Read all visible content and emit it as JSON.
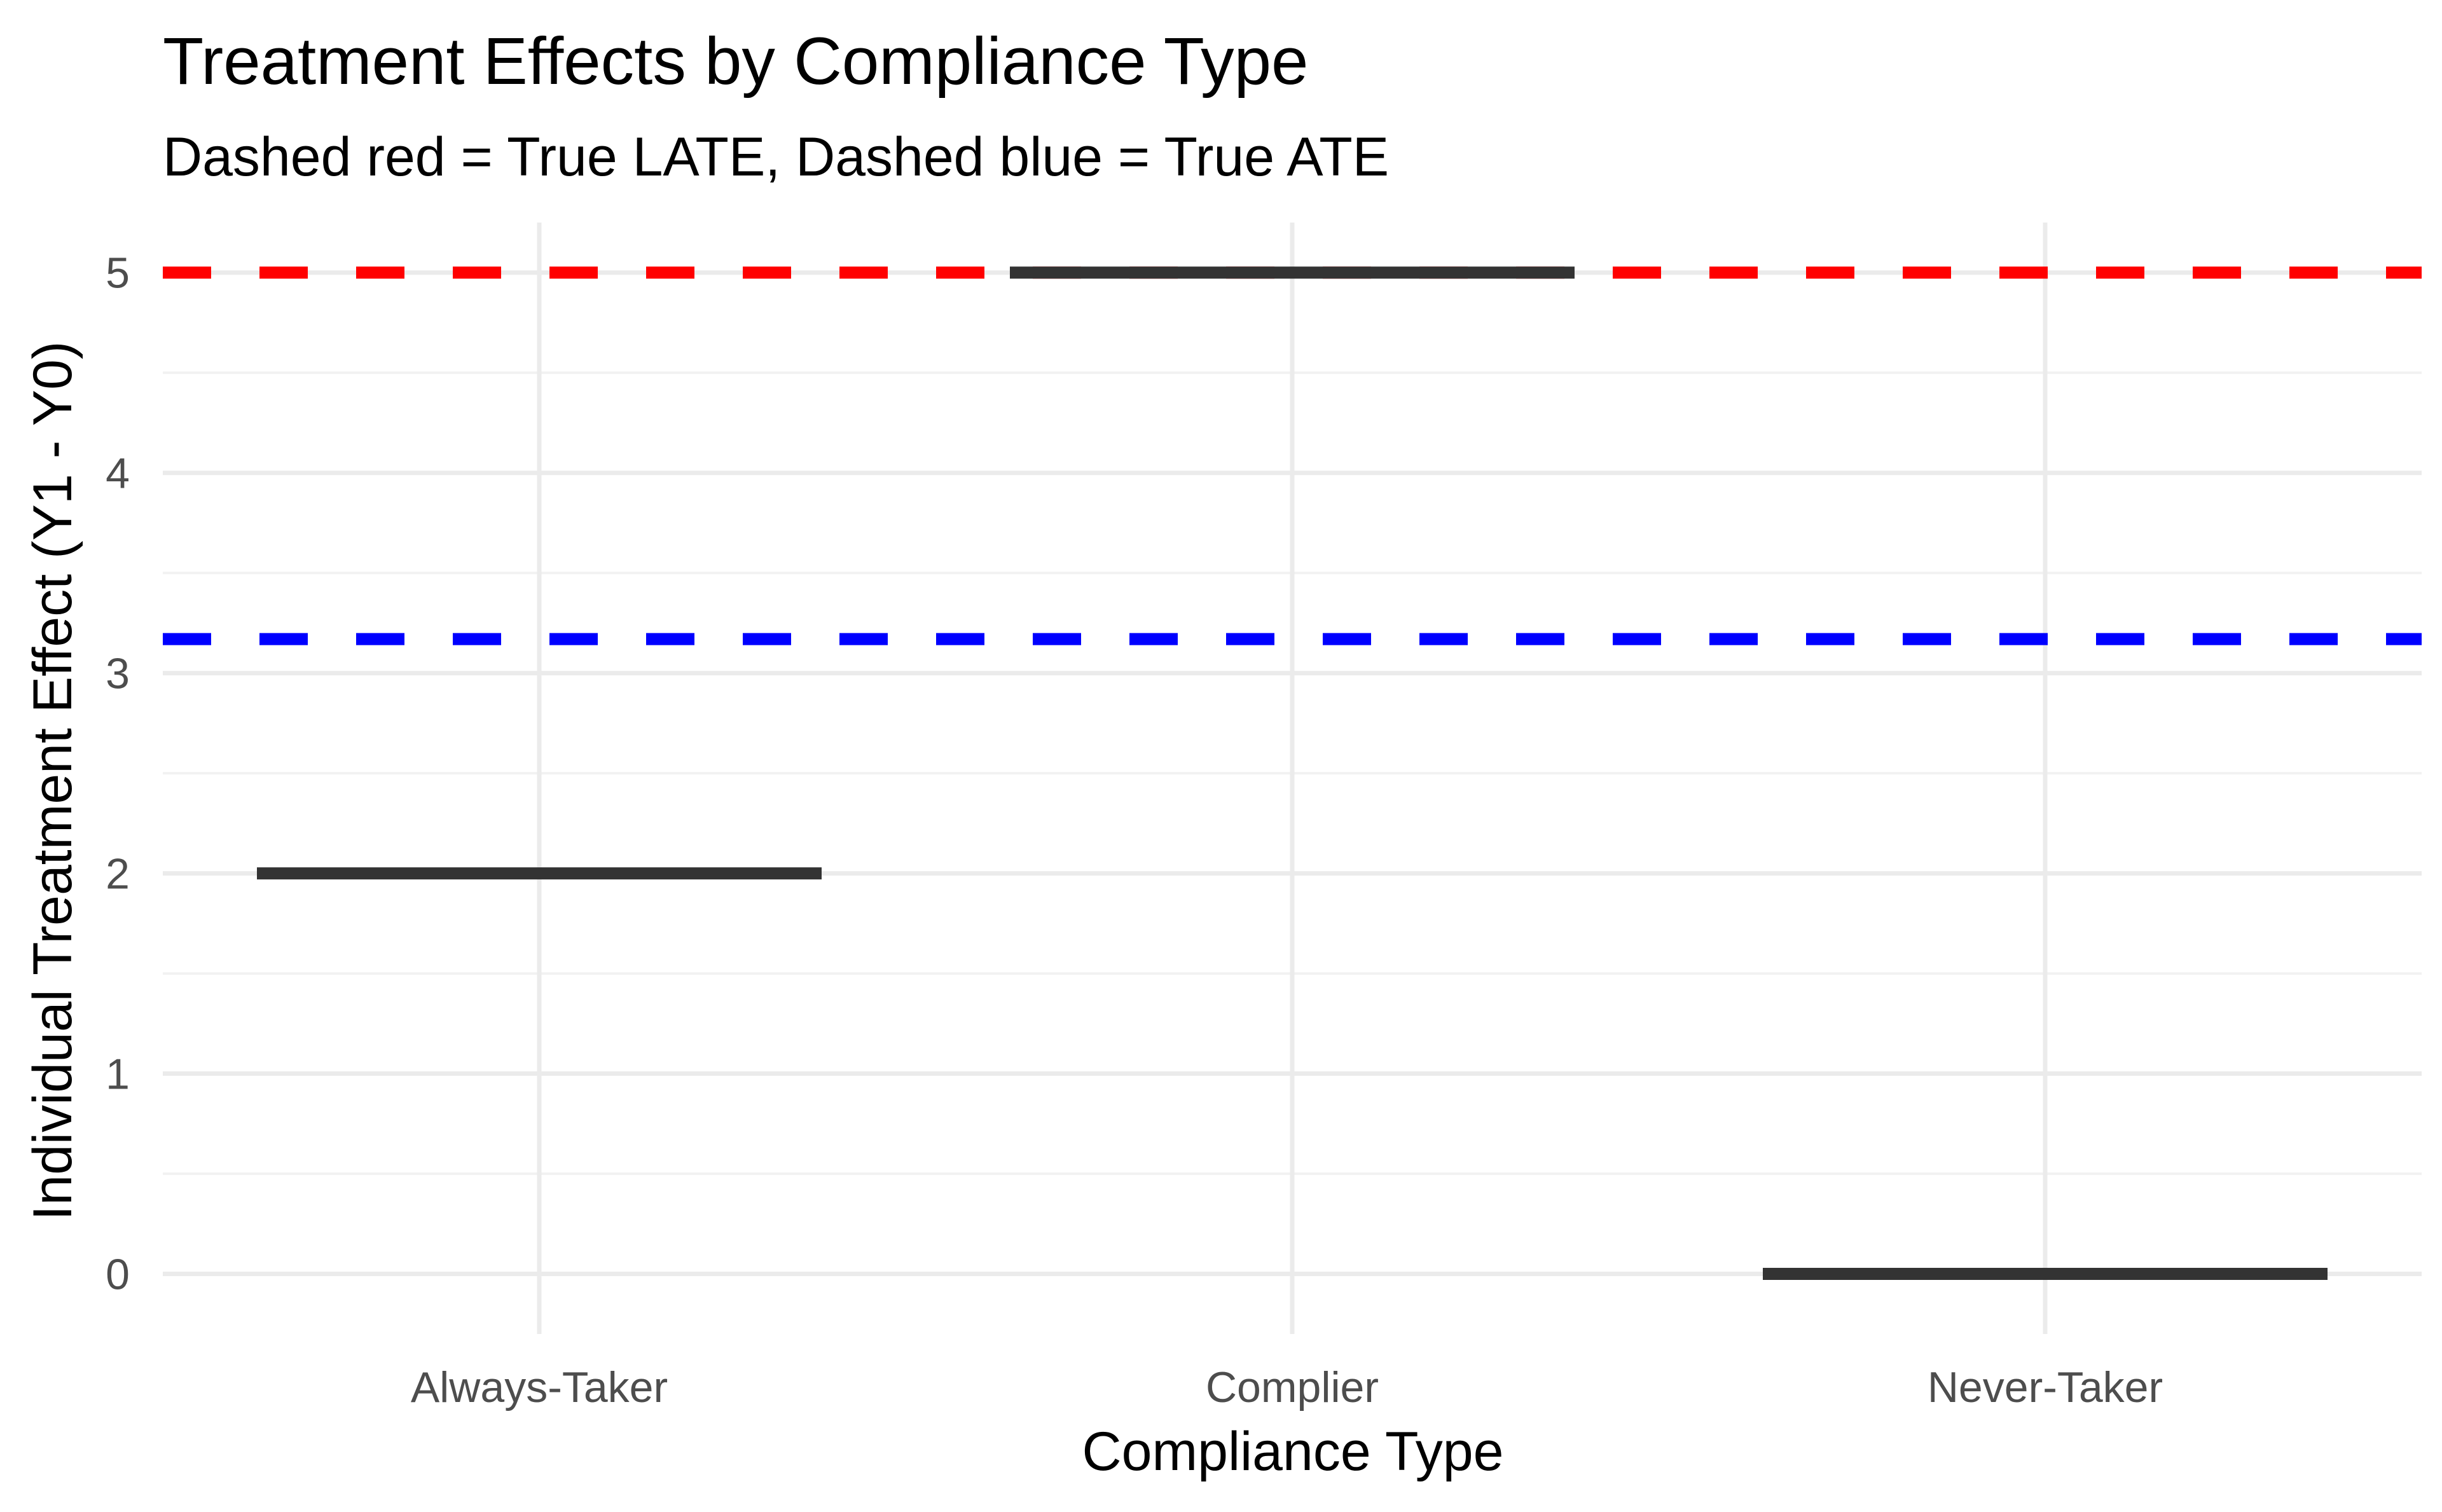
{
  "chart_data": {
    "type": "boxplot",
    "title": "Treatment Effects by Compliance Type",
    "subtitle": "Dashed red = True LATE, Dashed blue = True ATE",
    "xlabel": "Compliance Type",
    "ylabel": "Individual Treatment Effect (Y1 - Y0)",
    "categories": [
      "Always-Taker",
      "Complier",
      "Never-Taker"
    ],
    "values": [
      2,
      5,
      0
    ],
    "ylim": [
      -0.3,
      5.25
    ],
    "yticks": [
      0,
      1,
      2,
      3,
      4,
      5
    ],
    "ytick_labels": [
      "0",
      "1",
      "2",
      "3",
      "4",
      "5"
    ],
    "grid": true,
    "reference_lines": [
      {
        "value": 5.0,
        "color": "#ff0000",
        "style": "dashed"
      },
      {
        "value": 3.17,
        "color": "#0000ff",
        "style": "dashed"
      }
    ],
    "colors": {
      "box": "#333333",
      "grid_major": "#ebebeb",
      "grid_minor": "#f2f2f2"
    }
  }
}
